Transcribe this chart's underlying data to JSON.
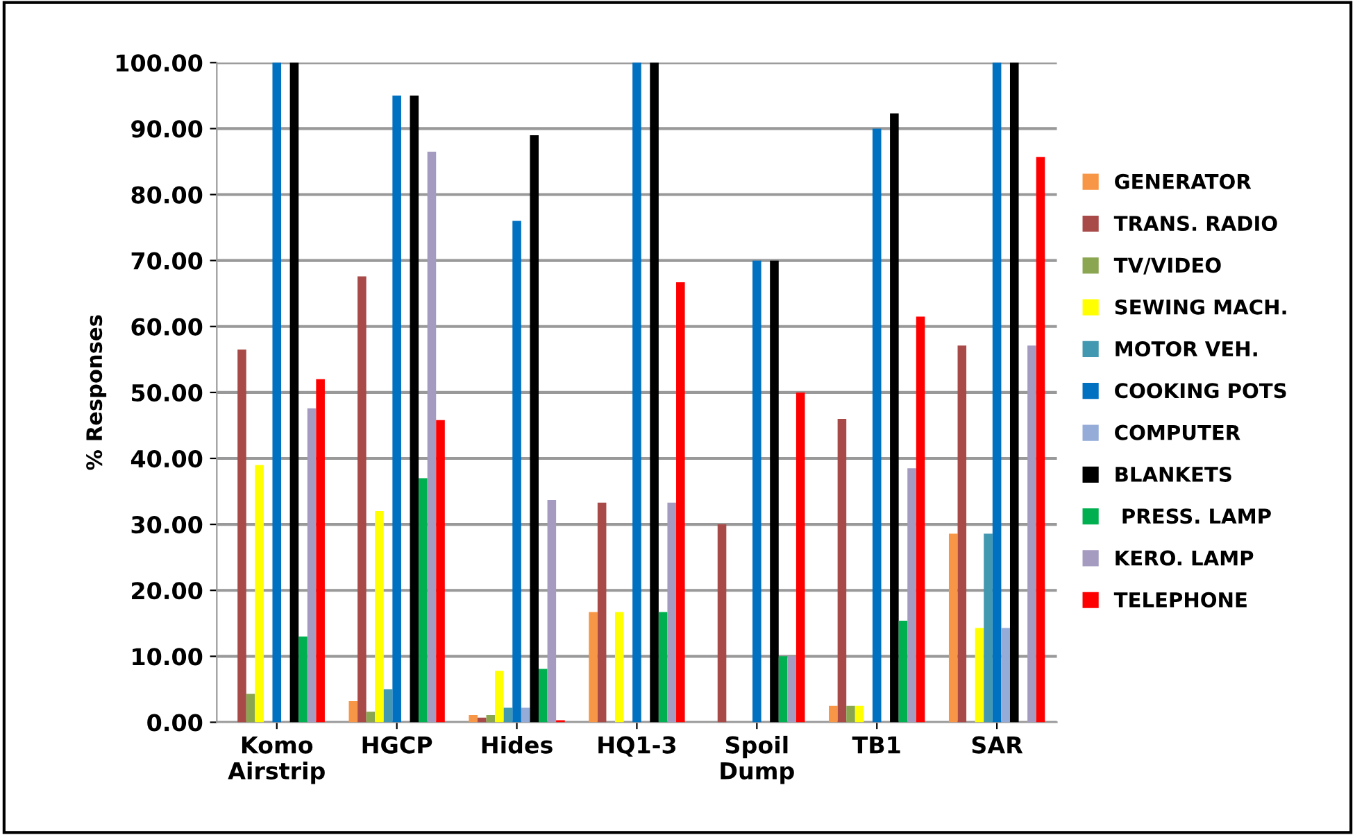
{
  "chart_data": {
    "type": "bar",
    "ylabel": "% Responses",
    "categories": [
      "Komo\nAirstrip",
      "HGCP",
      "Hides",
      "HQ1-3",
      "Spoil\nDump",
      "TB1",
      "SAR"
    ],
    "ylim": [
      0,
      100
    ],
    "yticks": [
      {
        "value": 0,
        "label": "0.00"
      },
      {
        "value": 10,
        "label": "10.00"
      },
      {
        "value": 20,
        "label": "20.00"
      },
      {
        "value": 30,
        "label": "30.00"
      },
      {
        "value": 40,
        "label": "40.00"
      },
      {
        "value": 50,
        "label": "50.00"
      },
      {
        "value": 60,
        "label": "60.00"
      },
      {
        "value": 70,
        "label": "70.00"
      },
      {
        "value": 80,
        "label": "80.00"
      },
      {
        "value": 90,
        "label": "90.00"
      },
      {
        "value": 100,
        "label": "100.00"
      }
    ],
    "grid": "y",
    "legend": "right",
    "series": [
      {
        "name": "GENERATOR",
        "color": "#f79646",
        "values": [
          0,
          3.2,
          1.1,
          16.7,
          0,
          2.5,
          28.6
        ]
      },
      {
        "name": "TRANS. RADIO",
        "color": "#a84a48",
        "values": [
          56.5,
          67.6,
          0.7,
          33.3,
          30,
          46,
          57.1
        ]
      },
      {
        "name": "TV/VIDEO",
        "color": "#8aa650",
        "values": [
          4.3,
          1.6,
          1.1,
          0,
          0,
          2.5,
          0
        ]
      },
      {
        "name": "SEWING MACH.",
        "color": "#ffff00",
        "values": [
          39,
          32,
          7.8,
          16.7,
          0,
          2.5,
          14.3
        ]
      },
      {
        "name": "MOTOR VEH.",
        "color": "#4298b0",
        "values": [
          0,
          5,
          2.2,
          0,
          0,
          0,
          28.6
        ]
      },
      {
        "name": "COOKING POTS",
        "color": "#0070c0",
        "values": [
          100,
          95,
          76,
          100,
          70,
          90,
          100
        ]
      },
      {
        "name": "COMPUTER",
        "color": "#95acd8",
        "values": [
          0,
          0,
          2.2,
          0,
          0,
          0,
          14.3
        ]
      },
      {
        "name": "BLANKETS",
        "color": "#000000",
        "values": [
          100,
          95,
          89,
          100,
          70,
          92.3,
          100
        ]
      },
      {
        "name": " PRESS. LAMP",
        "color": "#00b050",
        "values": [
          13,
          37,
          8.1,
          16.7,
          10,
          15.4,
          0
        ]
      },
      {
        "name": "KERO. LAMP",
        "color": "#a59bc0",
        "values": [
          47.6,
          86.5,
          33.7,
          33.3,
          10,
          38.5,
          57.1
        ]
      },
      {
        "name": "TELEPHONE",
        "color": "#ff0000",
        "values": [
          52,
          45.8,
          0.3,
          66.7,
          50,
          61.5,
          85.7
        ]
      }
    ]
  }
}
